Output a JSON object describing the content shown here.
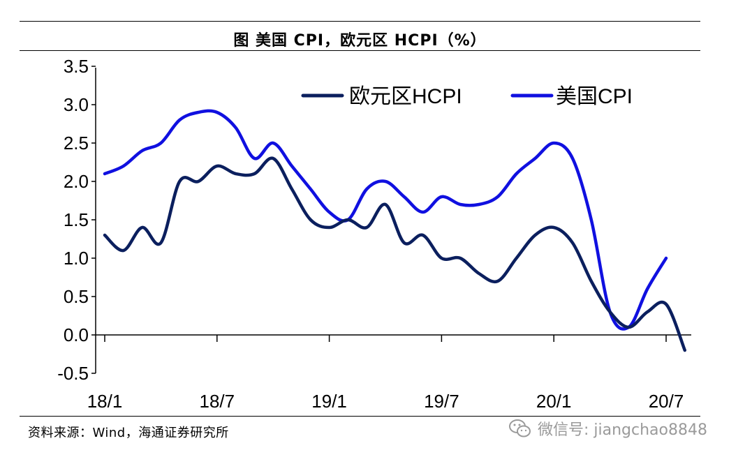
{
  "title": "图  美国 CPI，欧元区 HCPI（%）",
  "source": "资料来源：Wind，海通证券研究所",
  "watermark": "微信号: jiangchao8848",
  "watermark_icon": "wechat-icon",
  "chart_data": {
    "type": "line",
    "x": [
      "18/1",
      "18/2",
      "18/3",
      "18/4",
      "18/5",
      "18/6",
      "18/7",
      "18/8",
      "18/9",
      "18/10",
      "18/11",
      "18/12",
      "19/1",
      "19/2",
      "19/3",
      "19/4",
      "19/5",
      "19/6",
      "19/7",
      "19/8",
      "19/9",
      "19/10",
      "19/11",
      "19/12",
      "20/1",
      "20/2",
      "20/3",
      "20/4",
      "20/5",
      "20/6",
      "20/7",
      "20/8"
    ],
    "x_tick_labels": [
      "18/1",
      "18/7",
      "19/1",
      "19/7",
      "20/1",
      "20/7"
    ],
    "y_tick_labels": [
      "3.5",
      "3.0",
      "2.5",
      "2.0",
      "1.5",
      "1.0",
      "0.5",
      "0.0",
      "-0.5"
    ],
    "ylim": [
      -0.5,
      3.5
    ],
    "series": [
      {
        "name": "欧元区HCPI",
        "color": "#0b1f5e",
        "values": [
          1.3,
          1.1,
          1.4,
          1.2,
          2.0,
          2.0,
          2.2,
          2.1,
          2.1,
          2.3,
          1.9,
          1.5,
          1.4,
          1.5,
          1.4,
          1.7,
          1.2,
          1.3,
          1.0,
          1.0,
          0.8,
          0.7,
          1.0,
          1.3,
          1.4,
          1.2,
          0.7,
          0.3,
          0.1,
          0.3,
          0.4,
          -0.2
        ]
      },
      {
        "name": "美国CPI",
        "color": "#1010e0",
        "values": [
          2.1,
          2.2,
          2.4,
          2.5,
          2.8,
          2.9,
          2.9,
          2.7,
          2.3,
          2.5,
          2.2,
          1.9,
          1.6,
          1.5,
          1.9,
          2.0,
          1.8,
          1.6,
          1.8,
          1.7,
          1.7,
          1.8,
          2.1,
          2.3,
          2.5,
          2.3,
          1.5,
          0.3,
          0.1,
          0.6,
          1.0,
          null
        ]
      }
    ],
    "legend": "top-right",
    "grid": false,
    "title": "",
    "xlabel": "",
    "ylabel": ""
  }
}
